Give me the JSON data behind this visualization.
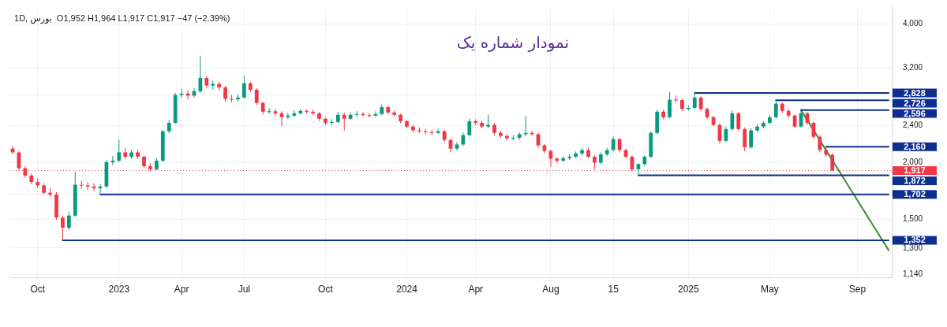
{
  "chart_data": {
    "type": "candlestick",
    "title": "نمودار شماره یک",
    "subtitle": "1D, بورس  O1,952 H1,964 L1,917 C1,917 −47 (−2.39%)",
    "log": true,
    "grid": true,
    "legend": "right",
    "ylim": [
      1120,
      4350
    ],
    "yticks": [
      {
        "value": 1140,
        "label": "1,140"
      },
      {
        "value": 1300,
        "label": "1,300"
      },
      {
        "value": 1500,
        "label": "1,500"
      },
      {
        "value": 1700,
        "label": null
      },
      {
        "value": 2000,
        "label": "2,000"
      },
      {
        "value": 2400,
        "label": "2,400"
      },
      {
        "value": 2800,
        "label": null
      },
      {
        "value": 3200,
        "label": "3,200"
      },
      {
        "value": 4000,
        "label": "4,000"
      }
    ],
    "categories": [
      null,
      null,
      null,
      null,
      "Oct",
      null,
      null,
      null,
      null,
      null,
      null,
      null,
      null,
      null,
      null,
      null,
      null,
      "2023",
      null,
      null,
      null,
      null,
      null,
      null,
      null,
      null,
      null,
      "Apr",
      null,
      null,
      null,
      null,
      null,
      null,
      null,
      null,
      null,
      "Jul",
      null,
      null,
      null,
      null,
      null,
      null,
      null,
      null,
      null,
      null,
      null,
      null,
      "Oct",
      null,
      null,
      null,
      null,
      null,
      null,
      null,
      null,
      null,
      null,
      null,
      null,
      "2024",
      null,
      null,
      null,
      null,
      null,
      null,
      null,
      null,
      null,
      null,
      "Apr",
      null,
      null,
      null,
      null,
      null,
      null,
      null,
      null,
      null,
      null,
      null,
      "Aug",
      null,
      null,
      null,
      null,
      null,
      null,
      null,
      null,
      null,
      "15",
      null,
      null,
      null,
      null,
      null,
      null,
      null,
      null,
      null,
      null,
      null,
      "2025",
      null,
      null,
      null,
      null,
      null,
      null,
      null,
      null,
      null,
      null,
      null,
      null,
      "May",
      null,
      null,
      null,
      null,
      null,
      null,
      null,
      null,
      null,
      null,
      null,
      null,
      null,
      "Sep",
      null,
      null,
      null,
      null,
      null
    ],
    "ohlc": [
      [
        2140,
        2170,
        2080,
        2100
      ],
      [
        2100,
        2110,
        1920,
        1940
      ],
      [
        1940,
        1960,
        1850,
        1870
      ],
      [
        1870,
        1890,
        1790,
        1810
      ],
      [
        1810,
        1840,
        1760,
        1780
      ],
      [
        1780,
        1800,
        1700,
        1715
      ],
      [
        1715,
        1760,
        1680,
        1700
      ],
      [
        1700,
        1720,
        1500,
        1515
      ],
      [
        1515,
        1530,
        1352,
        1440
      ],
      [
        1440,
        1560,
        1420,
        1530
      ],
      [
        1530,
        1905,
        1520,
        1785
      ],
      [
        1785,
        1820,
        1750,
        1780
      ],
      [
        1780,
        1810,
        1740,
        1770
      ],
      [
        1770,
        1800,
        1730,
        1755
      ],
      [
        1755,
        1790,
        1702,
        1770
      ],
      [
        1770,
        2020,
        1760,
        2000
      ],
      [
        2000,
        2060,
        1970,
        2015
      ],
      [
        2015,
        2240,
        2000,
        2100
      ],
      [
        2100,
        2150,
        2030,
        2055
      ],
      [
        2055,
        2130,
        2030,
        2100
      ],
      [
        2100,
        2130,
        2030,
        2055
      ],
      [
        2055,
        2070,
        1940,
        1960
      ],
      [
        1960,
        1990,
        1910,
        1930
      ],
      [
        1930,
        2040,
        1920,
        2015
      ],
      [
        2015,
        2350,
        2000,
        2335
      ],
      [
        2335,
        2470,
        2310,
        2435
      ],
      [
        2435,
        2830,
        2420,
        2800
      ],
      [
        2800,
        2890,
        2760,
        2820
      ],
      [
        2820,
        2870,
        2740,
        2790
      ],
      [
        2790,
        2900,
        2760,
        2855
      ],
      [
        2855,
        3410,
        2830,
        3050
      ],
      [
        3050,
        3080,
        2900,
        2935
      ],
      [
        2935,
        3010,
        2880,
        2960
      ],
      [
        2960,
        2990,
        2870,
        2910
      ],
      [
        2910,
        2930,
        2710,
        2745
      ],
      [
        2745,
        2800,
        2700,
        2740
      ],
      [
        2740,
        2810,
        2710,
        2765
      ],
      [
        2765,
        3090,
        2750,
        2970
      ],
      [
        2970,
        2990,
        2840,
        2875
      ],
      [
        2875,
        2900,
        2660,
        2690
      ],
      [
        2690,
        2710,
        2540,
        2575
      ],
      [
        2575,
        2620,
        2550,
        2580
      ],
      [
        2580,
        2610,
        2520,
        2555
      ],
      [
        2555,
        2580,
        2390,
        2505
      ],
      [
        2505,
        2560,
        2480,
        2525
      ],
      [
        2525,
        2590,
        2510,
        2555
      ],
      [
        2555,
        2610,
        2540,
        2585
      ],
      [
        2585,
        2610,
        2550,
        2575
      ],
      [
        2575,
        2600,
        2530,
        2555
      ],
      [
        2555,
        2570,
        2460,
        2485
      ],
      [
        2485,
        2500,
        2410,
        2435
      ],
      [
        2435,
        2480,
        2410,
        2445
      ],
      [
        2445,
        2570,
        2430,
        2535
      ],
      [
        2535,
        2560,
        2345,
        2485
      ],
      [
        2485,
        2570,
        2470,
        2535
      ],
      [
        2535,
        2580,
        2510,
        2545
      ],
      [
        2545,
        2570,
        2510,
        2530
      ],
      [
        2530,
        2560,
        2500,
        2525
      ],
      [
        2525,
        2580,
        2510,
        2545
      ],
      [
        2545,
        2670,
        2530,
        2635
      ],
      [
        2635,
        2650,
        2540,
        2565
      ],
      [
        2565,
        2590,
        2510,
        2535
      ],
      [
        2535,
        2550,
        2430,
        2455
      ],
      [
        2455,
        2470,
        2370,
        2390
      ],
      [
        2390,
        2410,
        2320,
        2345
      ],
      [
        2345,
        2380,
        2310,
        2335
      ],
      [
        2335,
        2360,
        2300,
        2325
      ],
      [
        2325,
        2350,
        2290,
        2315
      ],
      [
        2315,
        2370,
        2300,
        2335
      ],
      [
        2335,
        2350,
        2210,
        2235
      ],
      [
        2235,
        2250,
        2100,
        2140
      ],
      [
        2140,
        2210,
        2120,
        2185
      ],
      [
        2185,
        2320,
        2170,
        2290
      ],
      [
        2290,
        2490,
        2280,
        2455
      ],
      [
        2455,
        2480,
        2410,
        2435
      ],
      [
        2435,
        2460,
        2370,
        2390
      ],
      [
        2390,
        2535,
        2370,
        2410
      ],
      [
        2410,
        2430,
        2290,
        2315
      ],
      [
        2315,
        2340,
        2260,
        2280
      ],
      [
        2280,
        2300,
        2230,
        2255
      ],
      [
        2255,
        2290,
        2230,
        2260
      ],
      [
        2260,
        2320,
        2240,
        2300
      ],
      [
        2300,
        2520,
        2280,
        2315
      ],
      [
        2315,
        2340,
        2280,
        2300
      ],
      [
        2300,
        2320,
        2150,
        2175
      ],
      [
        2175,
        2190,
        2090,
        2115
      ],
      [
        2115,
        2130,
        1955,
        2035
      ],
      [
        2035,
        2050,
        1990,
        2015
      ],
      [
        2015,
        2060,
        2000,
        2040
      ],
      [
        2040,
        2080,
        2020,
        2055
      ],
      [
        2055,
        2110,
        2040,
        2090
      ],
      [
        2090,
        2150,
        2070,
        2125
      ],
      [
        2125,
        2150,
        2040,
        2055
      ],
      [
        2055,
        2070,
        1930,
        1995
      ],
      [
        1995,
        2100,
        1980,
        2080
      ],
      [
        2080,
        2150,
        2060,
        2125
      ],
      [
        2125,
        2270,
        2110,
        2245
      ],
      [
        2245,
        2260,
        2100,
        2125
      ],
      [
        2125,
        2140,
        2040,
        2055
      ],
      [
        2055,
        2070,
        1910,
        1930
      ],
      [
        1930,
        1990,
        1872,
        1980
      ],
      [
        1980,
        2070,
        1960,
        2055
      ],
      [
        2055,
        2330,
        2040,
        2315
      ],
      [
        2315,
        2600,
        2300,
        2575
      ],
      [
        2575,
        2600,
        2480,
        2505
      ],
      [
        2505,
        2845,
        2490,
        2735
      ],
      [
        2735,
        2790,
        2700,
        2730
      ],
      [
        2730,
        2750,
        2580,
        2610
      ],
      [
        2610,
        2660,
        2590,
        2625
      ],
      [
        2625,
        2828,
        2610,
        2765
      ],
      [
        2765,
        2780,
        2580,
        2610
      ],
      [
        2610,
        2630,
        2480,
        2505
      ],
      [
        2505,
        2520,
        2390,
        2410
      ],
      [
        2410,
        2430,
        2200,
        2225
      ],
      [
        2225,
        2390,
        2210,
        2360
      ],
      [
        2360,
        2590,
        2340,
        2555
      ],
      [
        2555,
        2570,
        2340,
        2360
      ],
      [
        2360,
        2380,
        2110,
        2155
      ],
      [
        2155,
        2370,
        2140,
        2345
      ],
      [
        2345,
        2420,
        2320,
        2390
      ],
      [
        2390,
        2460,
        2370,
        2435
      ],
      [
        2435,
        2530,
        2420,
        2505
      ],
      [
        2505,
        2726,
        2490,
        2680
      ],
      [
        2680,
        2700,
        2560,
        2585
      ],
      [
        2585,
        2610,
        2500,
        2525
      ],
      [
        2525,
        2540,
        2370,
        2390
      ],
      [
        2390,
        2596,
        2380,
        2555
      ],
      [
        2555,
        2570,
        2410,
        2435
      ],
      [
        2435,
        2450,
        2250,
        2270
      ],
      [
        2270,
        2290,
        2100,
        2125
      ],
      [
        2125,
        2160,
        2060,
        2075
      ],
      [
        2075,
        2090,
        1917,
        1917
      ],
      null,
      null,
      null,
      null,
      null,
      null,
      null,
      null,
      null
    ],
    "series": [
      {
        "type": "line",
        "name": "2,828",
        "color": "#0d2f8f",
        "values": [
          null,
          null,
          null,
          null,
          null,
          null,
          null,
          null,
          null,
          null,
          null,
          null,
          null,
          null,
          null,
          null,
          null,
          null,
          null,
          null,
          null,
          null,
          null,
          null,
          null,
          null,
          null,
          null,
          null,
          null,
          null,
          null,
          null,
          null,
          null,
          null,
          null,
          null,
          null,
          null,
          null,
          null,
          null,
          null,
          null,
          null,
          null,
          null,
          null,
          null,
          null,
          null,
          null,
          null,
          null,
          null,
          null,
          null,
          null,
          null,
          null,
          null,
          null,
          null,
          null,
          null,
          null,
          null,
          null,
          null,
          null,
          null,
          null,
          null,
          null,
          null,
          null,
          null,
          null,
          null,
          null,
          null,
          null,
          null,
          null,
          null,
          null,
          null,
          null,
          null,
          null,
          null,
          null,
          null,
          null,
          null,
          null,
          null,
          null,
          null,
          null,
          null,
          null,
          null,
          null,
          null,
          null,
          null,
          null,
          2828,
          2828,
          2828,
          2828,
          2828,
          2828,
          2828,
          2828,
          2828,
          2828,
          2828,
          2828,
          2828,
          2828,
          2828,
          2828,
          2828,
          2828,
          2828,
          2828,
          2828,
          2828,
          2828,
          2828,
          2828,
          2828,
          2828,
          2828,
          2828,
          2828,
          2828,
          2828
        ]
      },
      {
        "type": "line",
        "name": "2,726",
        "color": "#0d2f8f",
        "values": [
          null,
          null,
          null,
          null,
          null,
          null,
          null,
          null,
          null,
          null,
          null,
          null,
          null,
          null,
          null,
          null,
          null,
          null,
          null,
          null,
          null,
          null,
          null,
          null,
          null,
          null,
          null,
          null,
          null,
          null,
          null,
          null,
          null,
          null,
          null,
          null,
          null,
          null,
          null,
          null,
          null,
          null,
          null,
          null,
          null,
          null,
          null,
          null,
          null,
          null,
          null,
          null,
          null,
          null,
          null,
          null,
          null,
          null,
          null,
          null,
          null,
          null,
          null,
          null,
          null,
          null,
          null,
          null,
          null,
          null,
          null,
          null,
          null,
          null,
          null,
          null,
          null,
          null,
          null,
          null,
          null,
          null,
          null,
          null,
          null,
          null,
          null,
          null,
          null,
          null,
          null,
          null,
          null,
          null,
          null,
          null,
          null,
          null,
          null,
          null,
          null,
          null,
          null,
          null,
          null,
          null,
          null,
          null,
          null,
          null,
          null,
          null,
          null,
          null,
          null,
          null,
          null,
          null,
          null,
          null,
          null,
          null,
          2726,
          2726,
          2726,
          2726,
          2726,
          2726,
          2726,
          2726,
          2726,
          2726,
          2726,
          2726,
          2726,
          2726,
          2726,
          2726,
          2726,
          2726,
          2726
        ]
      },
      {
        "type": "line",
        "name": "2,596",
        "color": "#0d2f8f",
        "values": [
          null,
          null,
          null,
          null,
          null,
          null,
          null,
          null,
          null,
          null,
          null,
          null,
          null,
          null,
          null,
          null,
          null,
          null,
          null,
          null,
          null,
          null,
          null,
          null,
          null,
          null,
          null,
          null,
          null,
          null,
          null,
          null,
          null,
          null,
          null,
          null,
          null,
          null,
          null,
          null,
          null,
          null,
          null,
          null,
          null,
          null,
          null,
          null,
          null,
          null,
          null,
          null,
          null,
          null,
          null,
          null,
          null,
          null,
          null,
          null,
          null,
          null,
          null,
          null,
          null,
          null,
          null,
          null,
          null,
          null,
          null,
          null,
          null,
          null,
          null,
          null,
          null,
          null,
          null,
          null,
          null,
          null,
          null,
          null,
          null,
          null,
          null,
          null,
          null,
          null,
          null,
          null,
          null,
          null,
          null,
          null,
          null,
          null,
          null,
          null,
          null,
          null,
          null,
          null,
          null,
          null,
          null,
          null,
          null,
          null,
          null,
          null,
          null,
          null,
          null,
          null,
          null,
          null,
          null,
          null,
          null,
          null,
          null,
          null,
          null,
          null,
          2596,
          2596,
          2596,
          2596,
          2596,
          2596,
          2596,
          2596,
          2596,
          2596,
          2596,
          2596,
          2596,
          2596,
          2596
        ]
      },
      {
        "type": "line",
        "name": "2,160",
        "color": "#0d2f8f",
        "values": [
          null,
          null,
          null,
          null,
          null,
          null,
          null,
          null,
          null,
          null,
          null,
          null,
          null,
          null,
          null,
          null,
          null,
          null,
          null,
          null,
          null,
          null,
          null,
          null,
          null,
          null,
          null,
          null,
          null,
          null,
          null,
          null,
          null,
          null,
          null,
          null,
          null,
          null,
          null,
          null,
          null,
          null,
          null,
          null,
          null,
          null,
          null,
          null,
          null,
          null,
          null,
          null,
          null,
          null,
          null,
          null,
          null,
          null,
          null,
          null,
          null,
          null,
          null,
          null,
          null,
          null,
          null,
          null,
          null,
          null,
          null,
          null,
          null,
          null,
          null,
          null,
          null,
          null,
          null,
          null,
          null,
          null,
          null,
          null,
          null,
          null,
          null,
          null,
          null,
          null,
          null,
          null,
          null,
          null,
          null,
          null,
          null,
          null,
          null,
          null,
          null,
          null,
          null,
          null,
          null,
          null,
          null,
          null,
          null,
          null,
          null,
          null,
          null,
          null,
          null,
          null,
          null,
          null,
          null,
          null,
          null,
          null,
          null,
          null,
          null,
          null,
          null,
          null,
          null,
          null,
          2160,
          2160,
          2160,
          2160,
          2160,
          2160,
          2160,
          2160,
          2160,
          2160,
          2160
        ]
      },
      {
        "type": "line",
        "name": "1,872",
        "color": "#0d2f8f",
        "values": [
          null,
          null,
          null,
          null,
          null,
          null,
          null,
          null,
          null,
          null,
          null,
          null,
          null,
          null,
          null,
          null,
          null,
          null,
          null,
          null,
          null,
          null,
          null,
          null,
          null,
          null,
          null,
          null,
          null,
          null,
          null,
          null,
          null,
          null,
          null,
          null,
          null,
          null,
          null,
          null,
          null,
          null,
          null,
          null,
          null,
          null,
          null,
          null,
          null,
          null,
          null,
          null,
          null,
          null,
          null,
          null,
          null,
          null,
          null,
          null,
          null,
          null,
          null,
          null,
          null,
          null,
          null,
          null,
          null,
          null,
          null,
          null,
          null,
          null,
          null,
          null,
          null,
          null,
          null,
          null,
          null,
          null,
          null,
          null,
          null,
          null,
          null,
          null,
          null,
          null,
          null,
          null,
          null,
          null,
          null,
          null,
          null,
          null,
          null,
          null,
          1872,
          1872,
          1872,
          1872,
          1872,
          1872,
          1872,
          1872,
          1872,
          1872,
          1872,
          1872,
          1872,
          1872,
          1872,
          1872,
          1872,
          1872,
          1872,
          1872,
          1872,
          1872,
          1872,
          1872,
          1872,
          1872,
          1872,
          1872,
          1872,
          1872,
          1872,
          1872,
          1872,
          1872,
          1872,
          1872,
          1872,
          1872,
          1872,
          1872,
          1872
        ]
      },
      {
        "type": "line",
        "name": "1,702",
        "color": "#0d2f8f",
        "values": [
          null,
          null,
          null,
          null,
          null,
          null,
          null,
          null,
          null,
          null,
          null,
          null,
          null,
          null,
          1702,
          1702,
          1702,
          1702,
          1702,
          1702,
          1702,
          1702,
          1702,
          1702,
          1702,
          1702,
          1702,
          1702,
          1702,
          1702,
          1702,
          1702,
          1702,
          1702,
          1702,
          1702,
          1702,
          1702,
          1702,
          1702,
          1702,
          1702,
          1702,
          1702,
          1702,
          1702,
          1702,
          1702,
          1702,
          1702,
          1702,
          1702,
          1702,
          1702,
          1702,
          1702,
          1702,
          1702,
          1702,
          1702,
          1702,
          1702,
          1702,
          1702,
          1702,
          1702,
          1702,
          1702,
          1702,
          1702,
          1702,
          1702,
          1702,
          1702,
          1702,
          1702,
          1702,
          1702,
          1702,
          1702,
          1702,
          1702,
          1702,
          1702,
          1702,
          1702,
          1702,
          1702,
          1702,
          1702,
          1702,
          1702,
          1702,
          1702,
          1702,
          1702,
          1702,
          1702,
          1702,
          1702,
          1702,
          1702,
          1702,
          1702,
          1702,
          1702,
          1702,
          1702,
          1702,
          1702,
          1702,
          1702,
          1702,
          1702,
          1702,
          1702,
          1702,
          1702,
          1702,
          1702,
          1702,
          1702,
          1702,
          1702,
          1702,
          1702,
          1702,
          1702,
          1702,
          1702,
          1702,
          1702,
          1702,
          1702,
          1702,
          1702,
          1702,
          1702,
          1702,
          1702,
          1702
        ]
      },
      {
        "type": "line",
        "name": "1,352",
        "color": "#0d2f8f",
        "values": [
          null,
          null,
          null,
          null,
          null,
          null,
          null,
          null,
          1352,
          1352,
          1352,
          1352,
          1352,
          1352,
          1352,
          1352,
          1352,
          1352,
          1352,
          1352,
          1352,
          1352,
          1352,
          1352,
          1352,
          1352,
          1352,
          1352,
          1352,
          1352,
          1352,
          1352,
          1352,
          1352,
          1352,
          1352,
          1352,
          1352,
          1352,
          1352,
          1352,
          1352,
          1352,
          1352,
          1352,
          1352,
          1352,
          1352,
          1352,
          1352,
          1352,
          1352,
          1352,
          1352,
          1352,
          1352,
          1352,
          1352,
          1352,
          1352,
          1352,
          1352,
          1352,
          1352,
          1352,
          1352,
          1352,
          1352,
          1352,
          1352,
          1352,
          1352,
          1352,
          1352,
          1352,
          1352,
          1352,
          1352,
          1352,
          1352,
          1352,
          1352,
          1352,
          1352,
          1352,
          1352,
          1352,
          1352,
          1352,
          1352,
          1352,
          1352,
          1352,
          1352,
          1352,
          1352,
          1352,
          1352,
          1352,
          1352,
          1352,
          1352,
          1352,
          1352,
          1352,
          1352,
          1352,
          1352,
          1352,
          1352,
          1352,
          1352,
          1352,
          1352,
          1352,
          1352,
          1352,
          1352,
          1352,
          1352,
          1352,
          1352,
          1352,
          1352,
          1352,
          1352,
          1352,
          1352,
          1352,
          1352,
          1352,
          1352,
          1352,
          1352,
          1352,
          1352,
          1352,
          1352,
          1352,
          1352,
          1352
        ]
      },
      {
        "type": "line",
        "color": "#3a8f2f",
        "values": [
          null,
          null,
          null,
          null,
          null,
          null,
          null,
          null,
          null,
          null,
          null,
          null,
          null,
          null,
          null,
          null,
          null,
          null,
          null,
          null,
          null,
          null,
          null,
          null,
          null,
          null,
          null,
          null,
          null,
          null,
          null,
          null,
          null,
          null,
          null,
          null,
          null,
          null,
          null,
          null,
          null,
          null,
          null,
          null,
          null,
          null,
          null,
          null,
          null,
          null,
          null,
          null,
          null,
          null,
          null,
          null,
          null,
          null,
          null,
          null,
          null,
          null,
          null,
          null,
          null,
          null,
          null,
          null,
          null,
          null,
          null,
          null,
          null,
          null,
          null,
          null,
          null,
          null,
          null,
          null,
          null,
          null,
          null,
          null,
          null,
          null,
          null,
          null,
          null,
          null,
          null,
          null,
          null,
          null,
          null,
          null,
          null,
          null,
          null,
          null,
          null,
          null,
          null,
          null,
          null,
          null,
          null,
          null,
          null,
          null,
          null,
          null,
          null,
          null,
          null,
          null,
          null,
          null,
          null,
          null,
          null,
          null,
          null,
          null,
          null,
          null,
          2596,
          null,
          null,
          null,
          null,
          null,
          null,
          null,
          null,
          null,
          null,
          null,
          null,
          null,
          1286
        ]
      }
    ],
    "ref_lines": [
      {
        "axis": "y",
        "value": 1917,
        "label": "1,917",
        "color": "#f23645",
        "line_style": "dotted"
      }
    ]
  }
}
